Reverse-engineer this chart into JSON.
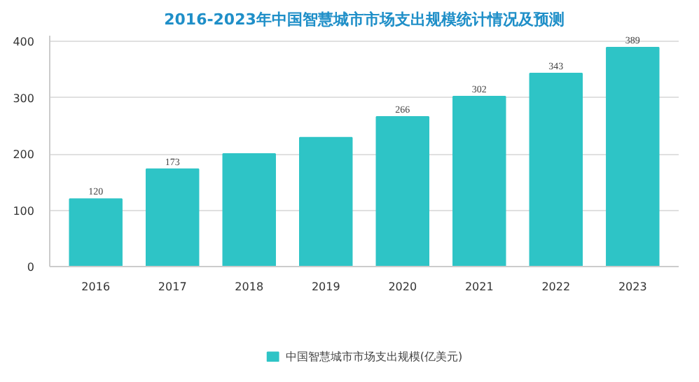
{
  "chart_data": {
    "type": "bar",
    "title": "2016-2023年中国智慧城市市场支出规模统计情况及预测",
    "categories": [
      "2016",
      "2017",
      "2018",
      "2019",
      "2020",
      "2021",
      "2022",
      "2023"
    ],
    "series": [
      {
        "name": "中国智慧城市市场支出规模(亿美元)",
        "color": "#2ec4c6",
        "values": [
          120,
          173,
          200,
          229,
          266,
          302,
          343,
          389
        ],
        "value_labels": [
          "120",
          "173",
          null,
          null,
          "266",
          "302",
          "343",
          "389"
        ]
      }
    ],
    "ylim": [
      0,
      410
    ],
    "yticks": [
      0,
      100,
      200,
      300,
      400
    ],
    "grid": "y",
    "legend": "bottom"
  }
}
